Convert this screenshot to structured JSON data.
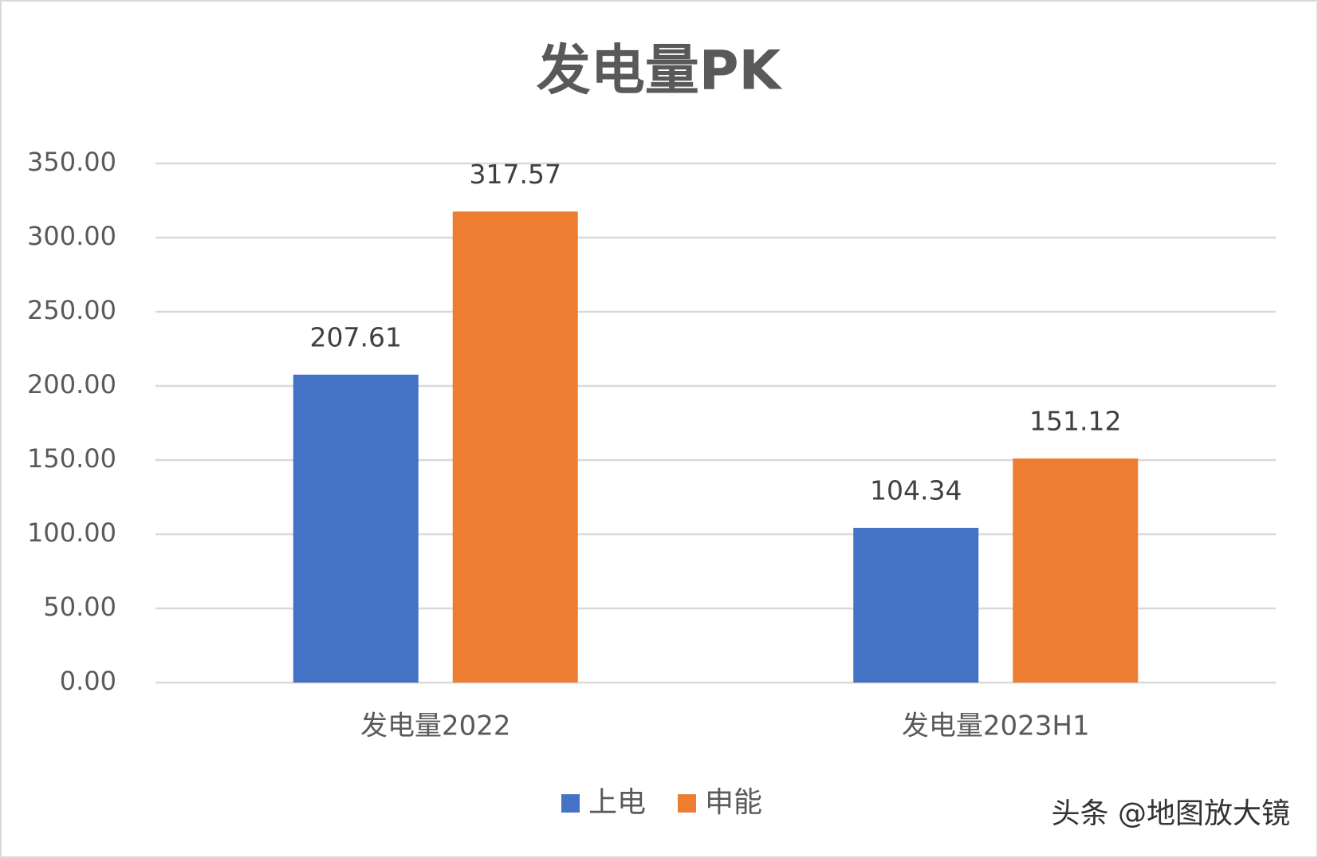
{
  "chart_data": {
    "type": "bar",
    "title": "发电量PK",
    "categories": [
      "发电量2022",
      "发电量2023H1"
    ],
    "series": [
      {
        "name": "上电",
        "color": "#4472c4",
        "values": [
          207.61,
          104.34
        ]
      },
      {
        "name": "申能",
        "color": "#ed7d31",
        "values": [
          317.57,
          151.12
        ]
      }
    ],
    "ylim": [
      0,
      350
    ],
    "yticks": [
      {
        "value": 0,
        "label": "0.00"
      },
      {
        "value": 50,
        "label": "50.00"
      },
      {
        "value": 100,
        "label": "100.00"
      },
      {
        "value": 150,
        "label": "150.00"
      },
      {
        "value": 200,
        "label": "200.00"
      },
      {
        "value": 250,
        "label": "250.00"
      },
      {
        "value": 300,
        "label": "300.00"
      },
      {
        "value": 350,
        "label": "350.00"
      }
    ],
    "grid": true,
    "legend": "bottom",
    "watermark": "头条 @地图放大镜"
  }
}
